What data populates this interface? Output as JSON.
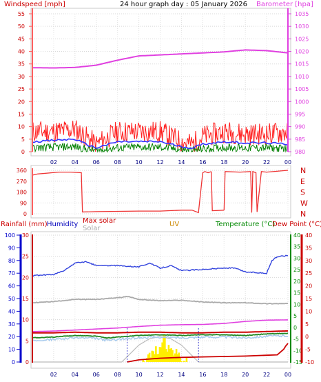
{
  "header": {
    "left_title": "Windspeed [mph]",
    "center_title": "24 hour graph day : 05 January 2026",
    "right_title": "Barometer [hpa]"
  },
  "legend": {
    "rainfall": "Rainfall (mm)",
    "humidity": "Humidity",
    "max_solar": "Max solar",
    "solar": "Solar",
    "uv": "UV",
    "temperature": "Temperature (°C)",
    "dew_point": "Dew Point (°C)"
  },
  "colors": {
    "wind_gust": "#ff2020",
    "wind_avg": "#3333ff",
    "wind_other": "#008000",
    "barometer": "#e040e0",
    "wind_dir": "#ee3333",
    "humidity": "#3344dd",
    "rainfall": "#cc0000",
    "temperature": "#228822",
    "dew_point": "#e040e0",
    "solar": "#aaaaaa",
    "max_solar": "#bbbbbb",
    "uv": "#ffee00",
    "feels": "#aaccee",
    "dir_axis": "#cc0000",
    "rain_axis": "#0000cc",
    "temp_axis": "#008800",
    "dew_axis": "#cc0000"
  },
  "chart_data": [
    {
      "type": "line",
      "panel": "wind-barometer",
      "x_ticks": [
        "02",
        "04",
        "06",
        "08",
        "10",
        "12",
        "14",
        "16",
        "18",
        "20",
        "22",
        "00"
      ],
      "left_ticks": [
        "0",
        "5",
        "10",
        "15",
        "20",
        "25",
        "30",
        "35",
        "40",
        "45",
        "50",
        "55"
      ],
      "right_ticks": [
        "980",
        "985",
        "990",
        "995",
        "1000",
        "1005",
        "1010",
        "1015",
        "1020",
        "1025",
        "1030",
        "1035"
      ],
      "ylim_left": [
        0,
        55
      ],
      "ylim_right": [
        980,
        1035
      ],
      "barometer": {
        "x": [
          0,
          2,
          4,
          6,
          8,
          10,
          12,
          14,
          16,
          18,
          20,
          22,
          24
        ],
        "y": [
          1013.5,
          1013.4,
          1013.6,
          1014.5,
          1016.5,
          1018.2,
          1018.6,
          1019.0,
          1019.4,
          1019.8,
          1020.6,
          1020.3,
          1019.4
        ]
      },
      "wind_gust_profile": {
        "x": [
          0,
          2,
          4,
          5,
          6,
          8,
          10,
          12,
          14,
          15,
          16,
          18,
          20,
          22,
          24
        ],
        "y": [
          8,
          8,
          9,
          6,
          3,
          8,
          8,
          8,
          4,
          3,
          6,
          8,
          7,
          7,
          8
        ]
      },
      "wind_avg_profile": {
        "x": [
          0,
          2,
          4,
          5,
          6,
          8,
          10,
          12,
          14,
          15,
          16,
          18,
          20,
          22,
          24
        ],
        "y": [
          4,
          4.5,
          5,
          3,
          1.5,
          4,
          4,
          4,
          2,
          1.5,
          3,
          4,
          3.5,
          3.5,
          3
        ]
      },
      "wind_other_profile": {
        "x": [
          0,
          2,
          4,
          5,
          6,
          8,
          10,
          12,
          14,
          15,
          16,
          18,
          20,
          22,
          24
        ],
        "y": [
          1.5,
          1.8,
          2,
          1,
          0.5,
          1.5,
          1.8,
          1.8,
          0.8,
          0.5,
          1,
          1.8,
          1.5,
          1.5,
          1.2
        ]
      }
    },
    {
      "type": "line",
      "panel": "wind-direction",
      "left_ticks": [
        "0",
        "90",
        "180",
        "270",
        "360"
      ],
      "right_labels": [
        "N",
        "W",
        "S",
        "E",
        "N"
      ],
      "ylim": [
        0,
        360
      ],
      "segments": [
        {
          "x": [
            0,
            0.5,
            2.5,
            3.6,
            4.6,
            4.6
          ],
          "y": [
            320,
            330,
            345,
            345,
            340,
            330
          ]
        },
        {
          "x": [
            4.6,
            4.7,
            6,
            8,
            10,
            12,
            14,
            15
          ],
          "y": [
            330,
            15,
            18,
            20,
            22,
            22,
            30,
            30
          ]
        },
        {
          "x": [
            15,
            15.6,
            16,
            16.2,
            16.5,
            16.8
          ],
          "y": [
            30,
            10,
            340,
            350,
            340,
            350
          ]
        },
        {
          "x": [
            16.8,
            16.9,
            18
          ],
          "y": [
            350,
            25,
            30
          ]
        },
        {
          "x": [
            18,
            18.1,
            19.5,
            20.5,
            20.6,
            20.7,
            21,
            21.1,
            21.5,
            22,
            24
          ],
          "y": [
            30,
            350,
            345,
            350,
            10,
            350,
            340,
            15,
            350,
            345,
            360
          ]
        }
      ]
    },
    {
      "type": "line",
      "panel": "rain-humidity-temperature",
      "rain_ticks": [
        "0",
        "10",
        "20",
        "30",
        "40",
        "50",
        "60",
        "70",
        "80",
        "90",
        "100"
      ],
      "humidity_ticks": [
        "0",
        "5",
        "10",
        "15",
        "20",
        "25",
        "30"
      ],
      "temp_ticks": [
        "-15",
        "-10",
        "-5",
        "0",
        "5",
        "10",
        "15",
        "20",
        "25",
        "30",
        "35",
        "40"
      ],
      "dew_ticks": [
        "-10",
        "-5",
        "0",
        "5",
        "10",
        "15",
        "20",
        "25",
        "30",
        "35",
        "40"
      ],
      "x_ticks": [
        "02",
        "04",
        "06",
        "08",
        "10",
        "12",
        "14",
        "16",
        "18",
        "20",
        "22",
        "00"
      ],
      "humidity_series": {
        "x": [
          0,
          2,
          3,
          4,
          5,
          6,
          8,
          10,
          11,
          12,
          13,
          14,
          16,
          18,
          19,
          20,
          22,
          22.5,
          23,
          24
        ],
        "y": [
          68,
          69,
          72,
          78,
          79,
          76,
          76,
          75,
          78,
          74,
          76,
          72,
          73,
          74,
          74,
          71,
          70,
          80,
          83,
          84
        ]
      },
      "rain_line": {
        "x": [
          0,
          2,
          4,
          6,
          8,
          10,
          12,
          14,
          16,
          18,
          20,
          22,
          24
        ],
        "y": [
          23,
          23,
          23.5,
          23,
          23,
          23.5,
          23.5,
          23,
          23,
          23.5,
          23.5,
          24,
          24.5
        ]
      },
      "solar_series": {
        "x": [
          0,
          2,
          4,
          6,
          8,
          9,
          10,
          12,
          14,
          16,
          18,
          20,
          22,
          24
        ],
        "y": [
          14,
          14.3,
          14.8,
          14.8,
          15.2,
          15.5,
          14.8,
          14.5,
          14.6,
          14.2,
          14.0,
          14.0,
          13.8,
          13.8
        ]
      },
      "temperature_series": {
        "x": [
          0,
          2,
          4,
          6,
          7,
          8,
          10,
          12,
          14,
          16,
          18,
          20,
          22,
          24
        ],
        "y": [
          -4.5,
          -4.2,
          -3.5,
          -3.8,
          -4.6,
          -4.2,
          -3.5,
          -3.2,
          -3.5,
          -3.2,
          -3.2,
          -3.5,
          -2.8,
          -2.6
        ]
      },
      "feels_series": {
        "x": [
          0,
          2,
          4,
          6,
          7,
          8,
          10,
          12,
          14,
          16,
          18,
          20,
          22,
          24
        ],
        "y": [
          -5.5,
          -5.2,
          -4.5,
          -4.8,
          -5.6,
          -5.2,
          -4.5,
          -4.2,
          -4.5,
          -4.2,
          -4.2,
          -4.5,
          -3.8,
          -3.6
        ]
      },
      "dew_point_series": {
        "x": [
          0,
          2,
          4,
          6,
          7,
          8,
          10,
          12,
          14,
          16,
          18,
          20,
          22,
          24
        ],
        "y": [
          2,
          2.2,
          2.6,
          3,
          3.2,
          3.4,
          4,
          4.5,
          4.7,
          4.8,
          5.2,
          6,
          6.5,
          6.6
        ]
      },
      "rain_accum": {
        "x": [
          8.9,
          10,
          12,
          13,
          14,
          16,
          18,
          20,
          22,
          23,
          23.6,
          23.8,
          24
        ],
        "y": [
          0,
          0.5,
          0.9,
          1.0,
          1.1,
          1.2,
          1.3,
          1.4,
          1.6,
          1.7,
          3,
          3.8,
          4.4
        ]
      },
      "max_solar_curve": {
        "x": [
          8.4,
          9,
          10,
          11,
          12,
          13,
          14,
          15,
          15.6
        ],
        "y": [
          0,
          1.5,
          4,
          5.5,
          6,
          5.5,
          4,
          1.5,
          0
        ]
      },
      "uv_bars": {
        "x_start": 10.2,
        "x_end": 14.8,
        "peak": 12.3
      },
      "dashed_markers": [
        8.9,
        15.6
      ]
    }
  ]
}
